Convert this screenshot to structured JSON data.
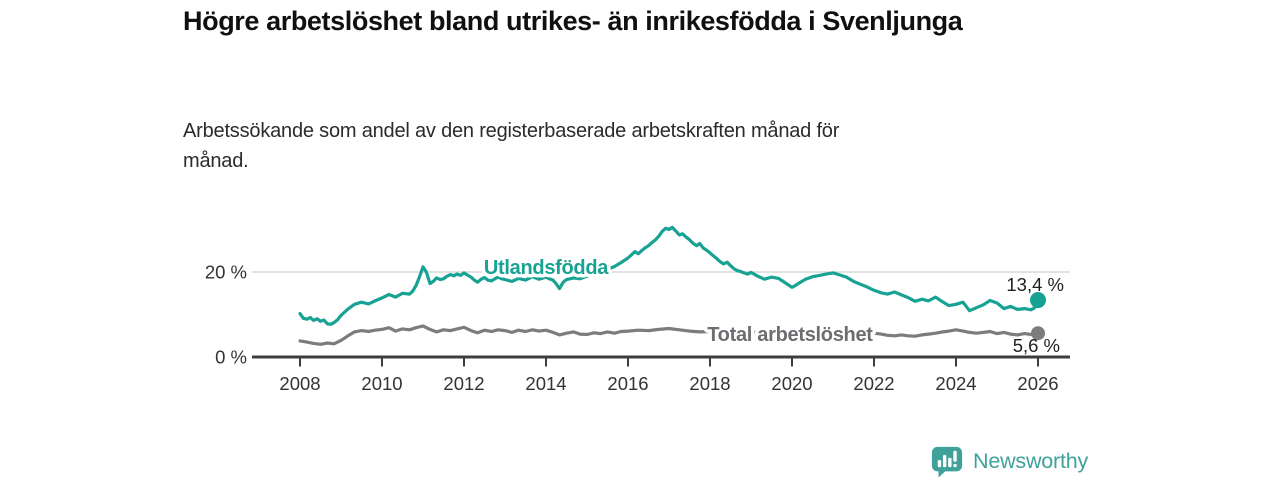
{
  "header": {
    "title": "Högre arbetslöshet bland utrikes- än inrikesfödda i Svenljunga",
    "subtitle": "Arbetssökande som andel av den registerbaserade arbetskraften månad för månad."
  },
  "footer": {
    "brand": "Newsworthy",
    "brand_color": "#3fa19a"
  },
  "chart_data": {
    "type": "line",
    "title": "Högre arbetslöshet bland utrikes- än inrikesfödda i Svenljunga",
    "subtitle": "Arbetssökande som andel av den registerbaserade arbetskraften månad för månad.",
    "xlabel": "",
    "ylabel": "",
    "unit": "%",
    "grid": "single horizontal gridline at 20 %",
    "legend_position": "inline labels on lines",
    "xlim": [
      2006.8,
      2026.8
    ],
    "ylim": [
      0,
      37
    ],
    "x_ticks": [
      2008,
      2010,
      2012,
      2014,
      2016,
      2018,
      2020,
      2022,
      2024,
      2026
    ],
    "y_ticks": [
      {
        "value": 0,
        "label": "0 %"
      },
      {
        "value": 20,
        "label": "20 %"
      }
    ],
    "series": [
      {
        "id": "utlandsfodda",
        "name": "Utlandsfödda",
        "color": "#17a293",
        "label_color": "#17a293",
        "label_anchor": [
          2014.0,
          19.5
        ],
        "end_label": "13,4 %",
        "end_value": 13.4,
        "end_label_offset": [
          26,
          -9
        ],
        "dot_radius": 8,
        "points": [
          [
            2008.0,
            10.2
          ],
          [
            2008.08,
            9.1
          ],
          [
            2008.17,
            8.9
          ],
          [
            2008.25,
            9.3
          ],
          [
            2008.33,
            8.6
          ],
          [
            2008.42,
            9.0
          ],
          [
            2008.5,
            8.4
          ],
          [
            2008.58,
            8.7
          ],
          [
            2008.67,
            7.8
          ],
          [
            2008.75,
            7.7
          ],
          [
            2008.83,
            8.1
          ],
          [
            2008.92,
            8.8
          ],
          [
            2009.0,
            9.8
          ],
          [
            2009.17,
            11.3
          ],
          [
            2009.33,
            12.4
          ],
          [
            2009.5,
            12.9
          ],
          [
            2009.67,
            12.5
          ],
          [
            2009.83,
            13.2
          ],
          [
            2010.0,
            13.9
          ],
          [
            2010.17,
            14.7
          ],
          [
            2010.33,
            14.1
          ],
          [
            2010.5,
            15.0
          ],
          [
            2010.67,
            14.8
          ],
          [
            2010.75,
            15.5
          ],
          [
            2010.83,
            16.8
          ],
          [
            2010.92,
            19.0
          ],
          [
            2011.0,
            21.2
          ],
          [
            2011.08,
            20.0
          ],
          [
            2011.17,
            17.3
          ],
          [
            2011.25,
            17.8
          ],
          [
            2011.33,
            18.6
          ],
          [
            2011.42,
            18.2
          ],
          [
            2011.5,
            18.4
          ],
          [
            2011.58,
            19.0
          ],
          [
            2011.67,
            19.4
          ],
          [
            2011.75,
            19.1
          ],
          [
            2011.83,
            19.5
          ],
          [
            2011.92,
            19.2
          ],
          [
            2012.0,
            19.8
          ],
          [
            2012.08,
            19.3
          ],
          [
            2012.17,
            18.8
          ],
          [
            2012.25,
            18.1
          ],
          [
            2012.33,
            17.6
          ],
          [
            2012.42,
            18.3
          ],
          [
            2012.5,
            18.7
          ],
          [
            2012.58,
            18.1
          ],
          [
            2012.67,
            17.9
          ],
          [
            2012.75,
            18.4
          ],
          [
            2012.83,
            18.8
          ],
          [
            2012.92,
            18.4
          ],
          [
            2013.0,
            18.2
          ],
          [
            2013.17,
            17.8
          ],
          [
            2013.33,
            18.5
          ],
          [
            2013.5,
            18.1
          ],
          [
            2013.67,
            18.9
          ],
          [
            2013.83,
            18.3
          ],
          [
            2014.0,
            18.8
          ],
          [
            2014.08,
            18.4
          ],
          [
            2014.17,
            18.1
          ],
          [
            2014.25,
            17.2
          ],
          [
            2014.33,
            16.1
          ],
          [
            2014.42,
            17.6
          ],
          [
            2014.5,
            18.2
          ],
          [
            2014.67,
            18.6
          ],
          [
            2014.83,
            18.4
          ],
          [
            2015.0,
            19.0
          ],
          [
            2015.17,
            19.4
          ],
          [
            2015.33,
            19.8
          ],
          [
            2015.5,
            20.6
          ],
          [
            2015.67,
            21.3
          ],
          [
            2015.83,
            22.2
          ],
          [
            2016.0,
            23.3
          ],
          [
            2016.08,
            24.0
          ],
          [
            2016.17,
            24.8
          ],
          [
            2016.25,
            24.3
          ],
          [
            2016.33,
            25.0
          ],
          [
            2016.42,
            25.7
          ],
          [
            2016.5,
            26.2
          ],
          [
            2016.58,
            26.9
          ],
          [
            2016.67,
            27.6
          ],
          [
            2016.75,
            28.4
          ],
          [
            2016.83,
            29.5
          ],
          [
            2016.92,
            30.3
          ],
          [
            2017.0,
            30.0
          ],
          [
            2017.08,
            30.5
          ],
          [
            2017.17,
            29.6
          ],
          [
            2017.25,
            28.7
          ],
          [
            2017.33,
            29.0
          ],
          [
            2017.42,
            28.2
          ],
          [
            2017.5,
            27.6
          ],
          [
            2017.58,
            26.8
          ],
          [
            2017.67,
            26.2
          ],
          [
            2017.75,
            26.7
          ],
          [
            2017.83,
            25.7
          ],
          [
            2017.92,
            25.1
          ],
          [
            2018.0,
            24.5
          ],
          [
            2018.08,
            23.8
          ],
          [
            2018.17,
            23.1
          ],
          [
            2018.25,
            22.4
          ],
          [
            2018.33,
            21.9
          ],
          [
            2018.42,
            22.3
          ],
          [
            2018.5,
            21.5
          ],
          [
            2018.58,
            20.8
          ],
          [
            2018.67,
            20.3
          ],
          [
            2018.75,
            20.1
          ],
          [
            2018.83,
            19.8
          ],
          [
            2018.92,
            19.5
          ],
          [
            2019.0,
            19.9
          ],
          [
            2019.17,
            19.0
          ],
          [
            2019.33,
            18.3
          ],
          [
            2019.5,
            18.8
          ],
          [
            2019.67,
            18.5
          ],
          [
            2019.83,
            17.5
          ],
          [
            2020.0,
            16.4
          ],
          [
            2020.08,
            16.8
          ],
          [
            2020.17,
            17.4
          ],
          [
            2020.33,
            18.3
          ],
          [
            2020.5,
            18.9
          ],
          [
            2020.67,
            19.2
          ],
          [
            2020.83,
            19.5
          ],
          [
            2021.0,
            19.8
          ],
          [
            2021.17,
            19.3
          ],
          [
            2021.33,
            18.8
          ],
          [
            2021.5,
            17.8
          ],
          [
            2021.67,
            17.1
          ],
          [
            2021.83,
            16.5
          ],
          [
            2022.0,
            15.7
          ],
          [
            2022.17,
            15.1
          ],
          [
            2022.33,
            14.8
          ],
          [
            2022.5,
            15.3
          ],
          [
            2022.67,
            14.6
          ],
          [
            2022.83,
            14.0
          ],
          [
            2023.0,
            13.1
          ],
          [
            2023.17,
            13.6
          ],
          [
            2023.33,
            13.2
          ],
          [
            2023.5,
            14.1
          ],
          [
            2023.67,
            13.0
          ],
          [
            2023.83,
            12.1
          ],
          [
            2024.0,
            12.4
          ],
          [
            2024.17,
            12.9
          ],
          [
            2024.33,
            10.9
          ],
          [
            2024.5,
            11.6
          ],
          [
            2024.67,
            12.3
          ],
          [
            2024.83,
            13.3
          ],
          [
            2025.0,
            12.7
          ],
          [
            2025.17,
            11.4
          ],
          [
            2025.33,
            11.9
          ],
          [
            2025.5,
            11.2
          ],
          [
            2025.67,
            11.4
          ],
          [
            2025.83,
            11.1
          ],
          [
            2025.92,
            11.6
          ],
          [
            2026.0,
            13.4
          ]
        ]
      },
      {
        "id": "total",
        "name": "Total arbetslöshet",
        "color": "#7c7c7c",
        "label_color": "#6e6e72",
        "label_anchor": [
          2019.95,
          3.8
        ],
        "end_label": "5,6 %",
        "end_value": 5.6,
        "end_label_offset": [
          22,
          19
        ],
        "dot_radius": 7,
        "points": [
          [
            2008.0,
            3.8
          ],
          [
            2008.17,
            3.5
          ],
          [
            2008.33,
            3.2
          ],
          [
            2008.5,
            3.0
          ],
          [
            2008.67,
            3.3
          ],
          [
            2008.83,
            3.1
          ],
          [
            2009.0,
            3.9
          ],
          [
            2009.17,
            5.0
          ],
          [
            2009.33,
            5.9
          ],
          [
            2009.5,
            6.2
          ],
          [
            2009.67,
            6.0
          ],
          [
            2009.83,
            6.3
          ],
          [
            2010.0,
            6.5
          ],
          [
            2010.17,
            6.9
          ],
          [
            2010.33,
            6.1
          ],
          [
            2010.5,
            6.6
          ],
          [
            2010.67,
            6.4
          ],
          [
            2010.83,
            6.9
          ],
          [
            2011.0,
            7.3
          ],
          [
            2011.17,
            6.5
          ],
          [
            2011.33,
            5.9
          ],
          [
            2011.5,
            6.4
          ],
          [
            2011.67,
            6.2
          ],
          [
            2011.83,
            6.6
          ],
          [
            2012.0,
            7.0
          ],
          [
            2012.17,
            6.2
          ],
          [
            2012.33,
            5.7
          ],
          [
            2012.5,
            6.3
          ],
          [
            2012.67,
            6.0
          ],
          [
            2012.83,
            6.4
          ],
          [
            2013.0,
            6.2
          ],
          [
            2013.17,
            5.8
          ],
          [
            2013.33,
            6.3
          ],
          [
            2013.5,
            6.0
          ],
          [
            2013.67,
            6.4
          ],
          [
            2013.83,
            6.1
          ],
          [
            2014.0,
            6.3
          ],
          [
            2014.17,
            5.8
          ],
          [
            2014.33,
            5.2
          ],
          [
            2014.5,
            5.6
          ],
          [
            2014.67,
            5.9
          ],
          [
            2014.83,
            5.4
          ],
          [
            2015.0,
            5.3
          ],
          [
            2015.17,
            5.7
          ],
          [
            2015.33,
            5.5
          ],
          [
            2015.5,
            5.9
          ],
          [
            2015.67,
            5.6
          ],
          [
            2015.83,
            6.0
          ],
          [
            2016.0,
            6.1
          ],
          [
            2016.25,
            6.3
          ],
          [
            2016.5,
            6.2
          ],
          [
            2016.75,
            6.5
          ],
          [
            2017.0,
            6.7
          ],
          [
            2017.25,
            6.4
          ],
          [
            2017.5,
            6.1
          ],
          [
            2017.75,
            5.9
          ],
          [
            2018.0,
            6.0
          ],
          [
            2018.25,
            5.8
          ],
          [
            2018.5,
            5.9
          ],
          [
            2018.75,
            5.7
          ],
          [
            2019.0,
            5.9
          ],
          [
            2019.25,
            5.7
          ],
          [
            2019.5,
            5.8
          ],
          [
            2019.75,
            6.0
          ],
          [
            2020.0,
            6.2
          ],
          [
            2020.25,
            6.4
          ],
          [
            2020.5,
            6.3
          ],
          [
            2020.75,
            6.1
          ],
          [
            2021.0,
            6.2
          ],
          [
            2021.25,
            6.0
          ],
          [
            2021.5,
            5.8
          ],
          [
            2021.75,
            5.7
          ],
          [
            2022.0,
            5.6
          ],
          [
            2022.17,
            5.4
          ],
          [
            2022.33,
            5.1
          ],
          [
            2022.5,
            5.0
          ],
          [
            2022.67,
            5.2
          ],
          [
            2022.83,
            5.0
          ],
          [
            2023.0,
            4.9
          ],
          [
            2023.17,
            5.2
          ],
          [
            2023.33,
            5.4
          ],
          [
            2023.5,
            5.6
          ],
          [
            2023.67,
            5.9
          ],
          [
            2023.83,
            6.1
          ],
          [
            2024.0,
            6.4
          ],
          [
            2024.17,
            6.1
          ],
          [
            2024.33,
            5.8
          ],
          [
            2024.5,
            5.6
          ],
          [
            2024.67,
            5.8
          ],
          [
            2024.83,
            6.0
          ],
          [
            2025.0,
            5.5
          ],
          [
            2025.17,
            5.8
          ],
          [
            2025.33,
            5.4
          ],
          [
            2025.5,
            5.2
          ],
          [
            2025.67,
            5.5
          ],
          [
            2025.83,
            5.3
          ],
          [
            2026.0,
            5.6
          ]
        ]
      }
    ]
  }
}
